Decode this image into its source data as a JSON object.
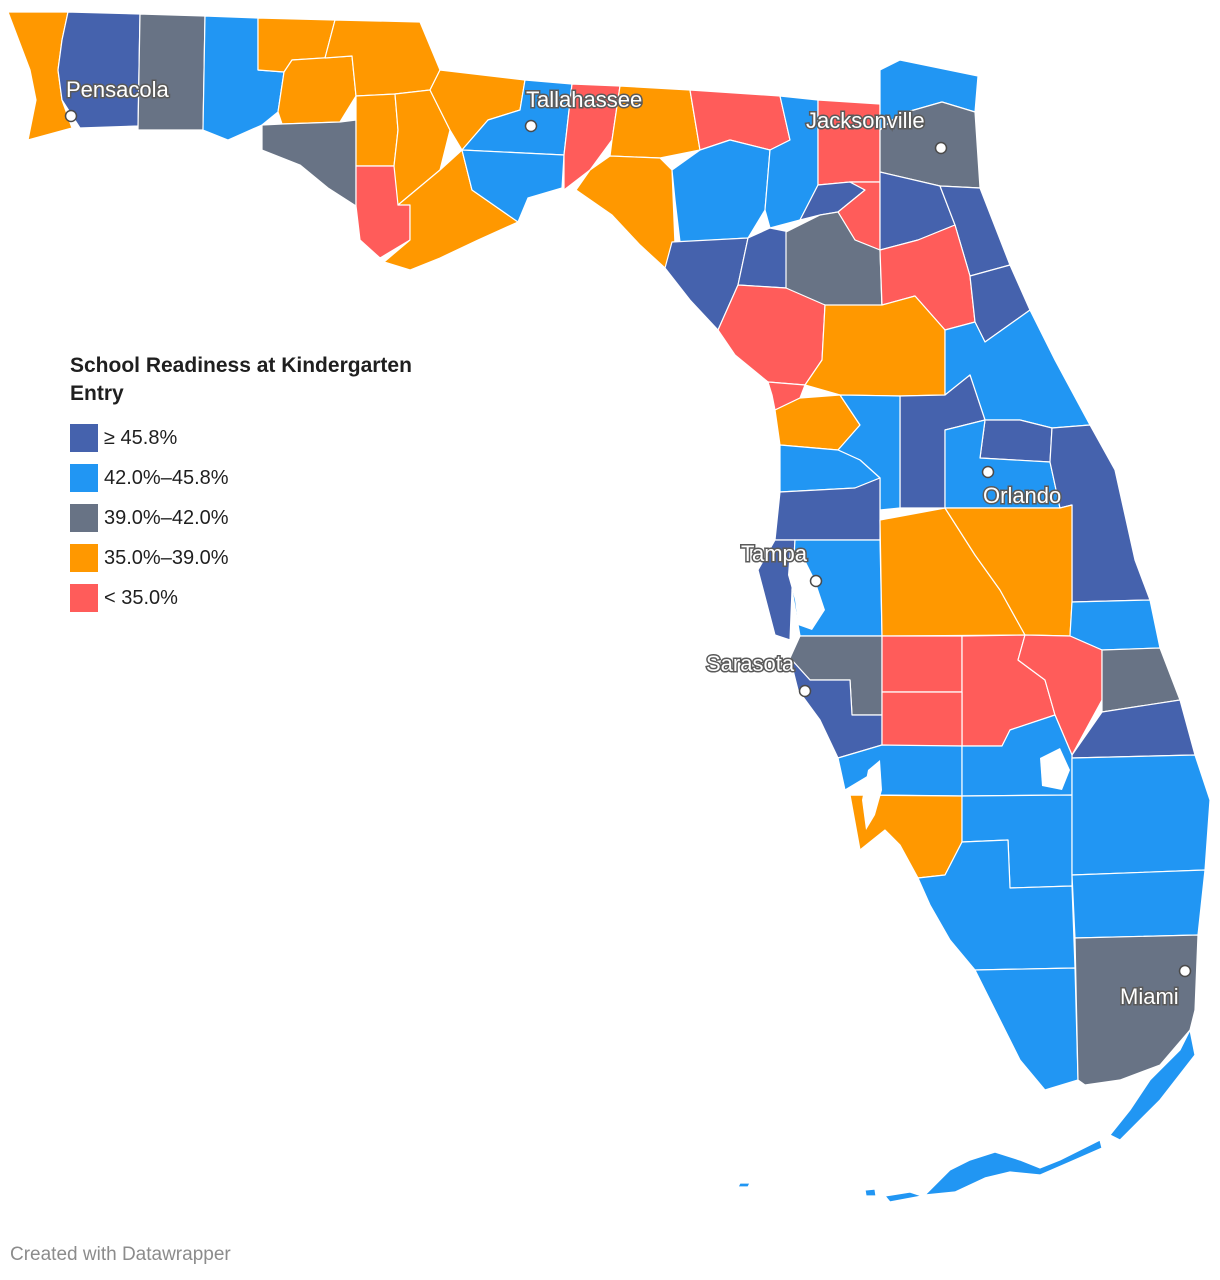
{
  "legend": {
    "title": "School Readiness at Kindergarten Entry",
    "items": [
      {
        "label": "≥ 45.8%",
        "color": "#4562ad"
      },
      {
        "label": "42.0%–45.8%",
        "color": "#2196f3"
      },
      {
        "label": "39.0%–42.0%",
        "color": "#687385"
      },
      {
        "label": "35.0%–39.0%",
        "color": "#ff9800"
      },
      {
        "label": "< 35.0%",
        "color": "#ff5c5a"
      }
    ]
  },
  "cities": [
    {
      "name": "Pensacola"
    },
    {
      "name": "Tallahassee"
    },
    {
      "name": "Jacksonville"
    },
    {
      "name": "Orlando"
    },
    {
      "name": "Tampa"
    },
    {
      "name": "Sarasota"
    },
    {
      "name": "Miami"
    }
  ],
  "credit": "Created with Datawrapper"
}
